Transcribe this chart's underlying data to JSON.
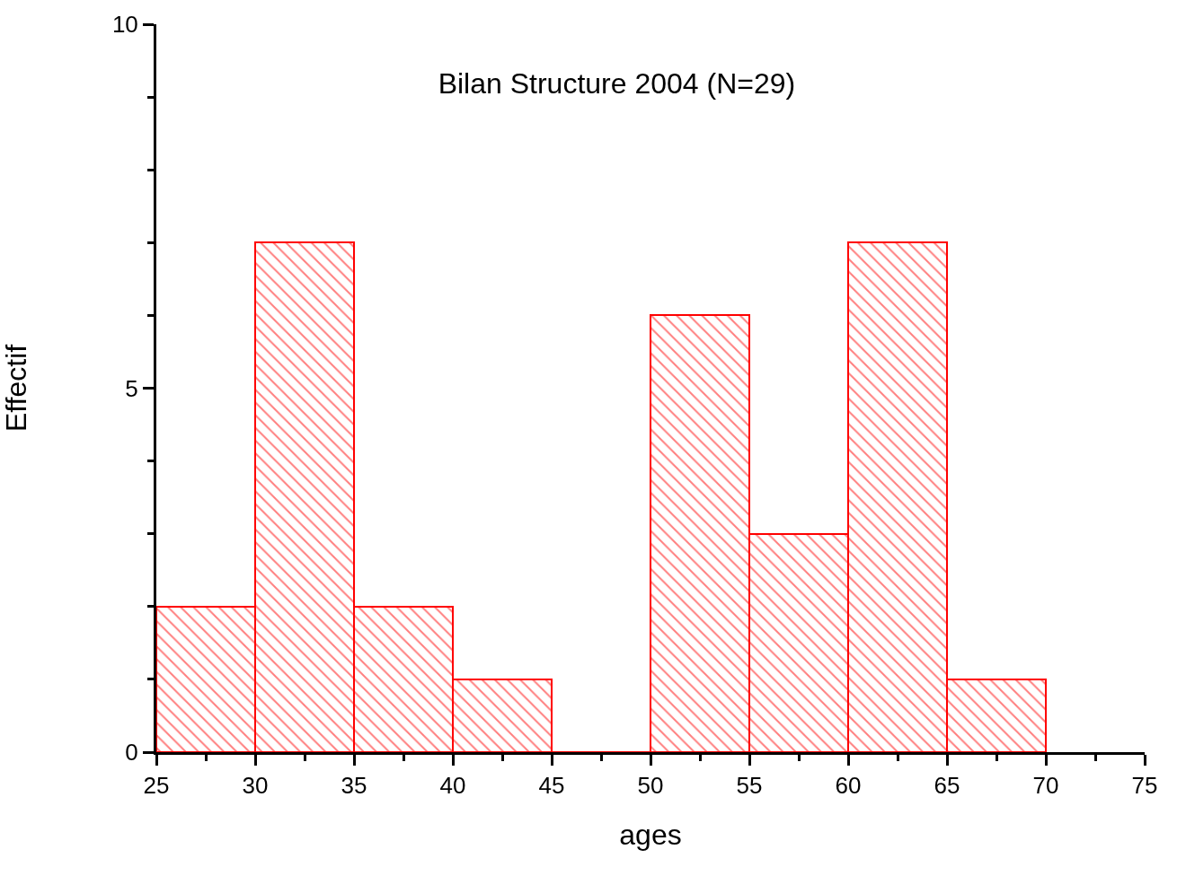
{
  "chart_data": {
    "type": "histogram",
    "title": "Bilan Structure 2004 (N=29)",
    "xlabel": "ages",
    "ylabel": "Effectif",
    "bins": [
      25,
      30,
      35,
      40,
      45,
      50,
      55,
      60,
      65,
      70
    ],
    "values": [
      2,
      7,
      2,
      1,
      0,
      6,
      3,
      7,
      1
    ],
    "color": "#ff0000",
    "xlim": [
      25,
      75
    ],
    "xticks": [
      25,
      {
        "value": 27.5,
        "label": null
      },
      30,
      {
        "value": 32.5,
        "label": null
      },
      35,
      {
        "value": 37.5,
        "label": null
      },
      40,
      {
        "value": 42.5,
        "label": null
      },
      45,
      {
        "value": 47.5,
        "label": null
      },
      50,
      {
        "value": 52.5,
        "label": null
      },
      55,
      {
        "value": 57.5,
        "label": null
      },
      60,
      {
        "value": 62.5,
        "label": null
      },
      65,
      {
        "value": 67.5,
        "label": null
      },
      70,
      {
        "value": 72.5,
        "label": null
      },
      75
    ],
    "ylim": [
      0,
      10
    ],
    "yticks": [
      0,
      {
        "value": 1,
        "label": null
      },
      {
        "value": 2,
        "label": null
      },
      {
        "value": 3,
        "label": null
      },
      {
        "value": 4,
        "label": null
      },
      5,
      {
        "value": 6,
        "label": null
      },
      {
        "value": 7,
        "label": null
      },
      {
        "value": 8,
        "label": null
      },
      {
        "value": 9,
        "label": null
      },
      10
    ],
    "tick_labels": "xy"
  }
}
